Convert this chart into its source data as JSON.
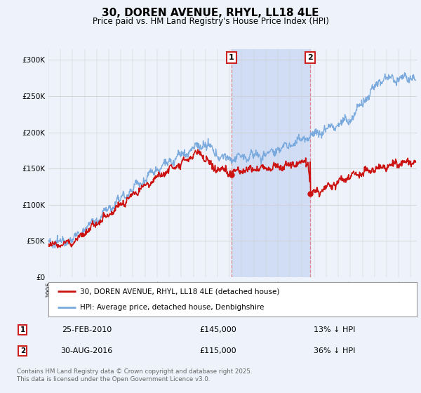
{
  "title": "30, DOREN AVENUE, RHYL, LL18 4LE",
  "subtitle": "Price paid vs. HM Land Registry's House Price Index (HPI)",
  "ylim": [
    0,
    315000
  ],
  "xlim_start": 1995.0,
  "xlim_end": 2025.5,
  "hpi_color": "#7aaadd",
  "price_color": "#cc1111",
  "marker1_x": 2010.15,
  "marker2_x": 2016.67,
  "transaction1_date": "25-FEB-2010",
  "transaction1_price": "£145,000",
  "transaction1_hpi": "13% ↓ HPI",
  "transaction2_date": "30-AUG-2016",
  "transaction2_price": "£115,000",
  "transaction2_hpi": "36% ↓ HPI",
  "legend1": "30, DOREN AVENUE, RHYL, LL18 4LE (detached house)",
  "legend2": "HPI: Average price, detached house, Denbighshire",
  "footnote": "Contains HM Land Registry data © Crown copyright and database right 2025.\nThis data is licensed under the Open Government Licence v3.0.",
  "background_color": "#eef2fa",
  "vspan_color": "#d0ddf5",
  "vline_color": "#dd8888"
}
